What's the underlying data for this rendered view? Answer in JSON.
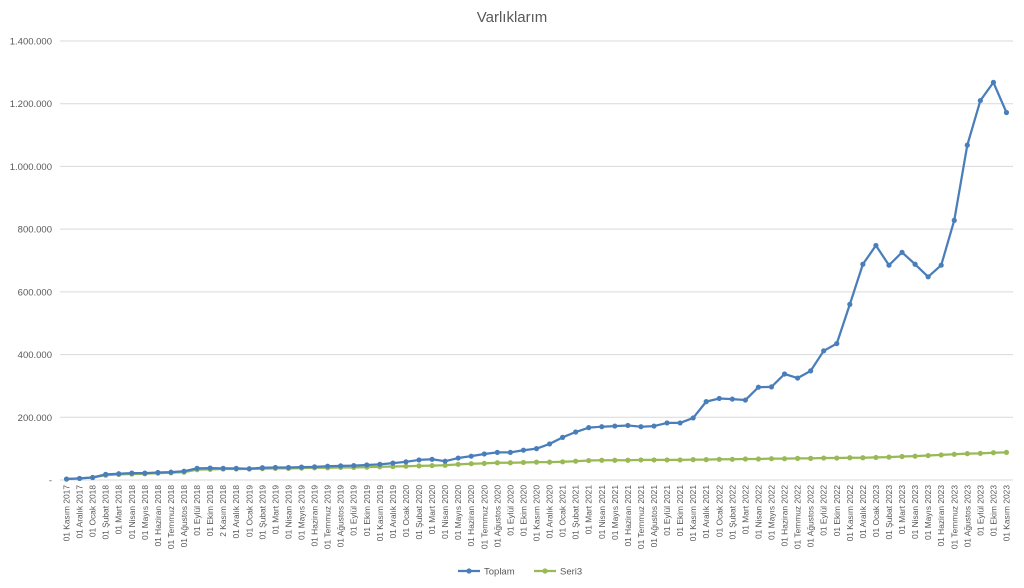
{
  "chart_data": {
    "type": "line",
    "title": "Varlıklarım",
    "xlabel": "",
    "ylabel": "",
    "ylim": [
      0,
      1400000
    ],
    "yticks": [
      "-",
      "200.000",
      "400.000",
      "600.000",
      "800.000",
      "1.000.000",
      "1.200.000",
      "1.400.000"
    ],
    "grid": true,
    "legend_position": "bottom",
    "categories": [
      "01 Kasım 2017",
      "01 Aralık 2017",
      "01 Ocak 2018",
      "01 Şubat 2018",
      "01 Mart 2018",
      "01 Nisan 2018",
      "01 Mayıs 2018",
      "01 Haziran 2018",
      "01 Temmuz 2018",
      "01 Ağustos 2018",
      "01 Eylül 2018",
      "01 Ekim 2018",
      "2 Kasım 2018",
      "01 Aralık 2018",
      "01 Ocak 2019",
      "01 Şubat 2019",
      "01 Mart 2019",
      "01 Nisan 2019",
      "01 Mayıs 2019",
      "01 Haziran 2019",
      "01 Temmuz 2019",
      "01 Ağustos 2019",
      "01 Eylül 2019",
      "01 Ekim 2019",
      "01 Kasım 2019",
      "01 Aralık 2019",
      "01 Ocak 2020",
      "01 Şubat 2020",
      "01 Mart 2020",
      "01 Nisan 2020",
      "01 Mayıs 2020",
      "01 Haziran 2020",
      "01 Temmuz 2020",
      "01 Ağustos 2020",
      "01 Eylül 2020",
      "01 Ekim 2020",
      "01 Kasım 2020",
      "01 Aralık 2020",
      "01 Ocak 2021",
      "01 Şubat 2021",
      "01 Mart 2021",
      "01 Nisan 2021",
      "01 Mayıs 2021",
      "01 Haziran 2021",
      "01 Temmuz 2021",
      "01 Ağustos 2021",
      "01 Eylül 2021",
      "01 Ekim 2021",
      "01 Kasım 2021",
      "01 Aralık 2021",
      "01 Ocak 2022",
      "01 Şubat 2022",
      "01 Mart 2022",
      "01 Nisan 2022",
      "01 Mayıs 2022",
      "01 Haziran 2022",
      "01 Temmuz 2022",
      "01 Ağustos 2022",
      "01 Eylül 2022",
      "01 Ekim 2022",
      "01 Kasım 2022",
      "01 Aralık 2022",
      "01 Ocak 2023",
      "01 Şubat 2023",
      "01 Mart 2023",
      "01 Nisan 2023",
      "01 Mayıs 2023",
      "01 Haziran 2023",
      "01 Temmuz 2023",
      "01 Ağustos 2023",
      "01 Eylül 2023",
      "01 Ekim 2023",
      "01 Kasım 2023"
    ],
    "xtick_labels": [
      "01 Kasım 2017",
      "01 Aralık 2017",
      "01 Ocak 2018",
      "01 Şubat 2018",
      "01 Mart 2018",
      "01 Nisan 2018",
      "01 Mayıs 2018",
      "01 Haziran 2018",
      "01 Temmuz 2018",
      "01 Ağustos 2018",
      "01 Eylül 2018",
      "01 Ekim 2018",
      "2 Kasım 2018",
      "01 Aralık 2018",
      "01 Ocak 2019",
      "01 Şubat 2019",
      "01 Mart 2019",
      "01 Nisan 2019",
      "01 Mayıs 2019",
      "01 Haziran 2019",
      "01 Temmuz 2019",
      "01 Ağustos 2019",
      "01 Eylül 2019",
      "01 Ekim 2019",
      "01 Kasım 2019",
      "01 Aralık 2019",
      "01 Ocak 2020",
      "01 Şubat 2020",
      "01 Mart 2020",
      "01 Nisan 2020",
      "01 Mayıs 2020",
      "01 Haziran 2020",
      "01 Temmuz 2020",
      "01 Ağustos 2020",
      "01 Eylül 2020",
      "01 Ekim 2020",
      "01 Kasım 2020",
      "01 Aralık 2020",
      "01 Ocak 2021",
      "01 Şubat 2021",
      "01 Mart 2021",
      "01 Nisan 2021",
      "01 Mayıs 2021",
      "01 Haziran 2021",
      "01 Temmuz 2021",
      "01 Ağustos 2021",
      "01 Eylül 2021",
      "01 Ekim 2021",
      "01 Kasım 2021",
      "01 Aralık 2021",
      "01 Ocak 2022",
      "01 Şubat 2022",
      "01 Mart 2022",
      "01 Nisan 2022",
      "01 Mayıs 2022",
      "01 Haziran 2022",
      "01 Temmuz 2022",
      "01 Ağustos 2022",
      "01 Eylül 2022",
      "01 Ekim 2022",
      "01 Kasım 2022",
      "01 Aralık 2022",
      "01 Ocak 2023",
      "01 Şubat 2023",
      "01 Mart 2023",
      "01 Nisan 2023",
      "01 Mayıs 2023",
      "01 Haziran 2023",
      "01 Temmuz 2023",
      "01 Ağustos 2023",
      "01 Eylül 2023",
      "01 Ekim 2023",
      "01 Kasım 2023"
    ],
    "series": [
      {
        "name": "Toplam",
        "color": "#4a7ebb",
        "values": [
          3000,
          5000,
          8000,
          18000,
          20000,
          22000,
          22000,
          24000,
          25000,
          28000,
          37000,
          38000,
          37000,
          37000,
          36000,
          39000,
          40000,
          40000,
          41000,
          42000,
          44000,
          45000,
          46000,
          48000,
          50000,
          54000,
          58000,
          64000,
          66000,
          60000,
          70000,
          76000,
          83000,
          88000,
          88000,
          95000,
          100000,
          115000,
          136000,
          153000,
          167000,
          170000,
          172000,
          174000,
          170000,
          172000,
          182000,
          182000,
          198000,
          250000,
          260000,
          258000,
          255000,
          296000,
          297000,
          338000,
          325000,
          348000,
          412000,
          435000,
          560000,
          688000,
          748000,
          685000,
          726000,
          688000,
          648000,
          685000,
          828000,
          1068000,
          1210000,
          1268000,
          1172000
        ]
      },
      {
        "name": "Seri3",
        "color": "#98b954",
        "values": [
          3000,
          5000,
          8000,
          15000,
          18000,
          19000,
          20000,
          22000,
          23000,
          25000,
          33000,
          34000,
          35000,
          35000,
          35000,
          36000,
          37000,
          37000,
          38000,
          39000,
          39000,
          40000,
          40000,
          41000,
          42000,
          43000,
          44000,
          45000,
          46000,
          47000,
          50000,
          52000,
          53000,
          55000,
          55000,
          56000,
          57000,
          57000,
          58000,
          60000,
          62000,
          63000,
          63000,
          63000,
          64000,
          64000,
          64000,
          64000,
          65000,
          65000,
          66000,
          66000,
          67000,
          67000,
          68000,
          68000,
          69000,
          69000,
          70000,
          70000,
          71000,
          71000,
          72000,
          73000,
          75000,
          76000,
          78000,
          80000,
          82000,
          84000,
          85000,
          87000,
          88000
        ]
      }
    ]
  }
}
